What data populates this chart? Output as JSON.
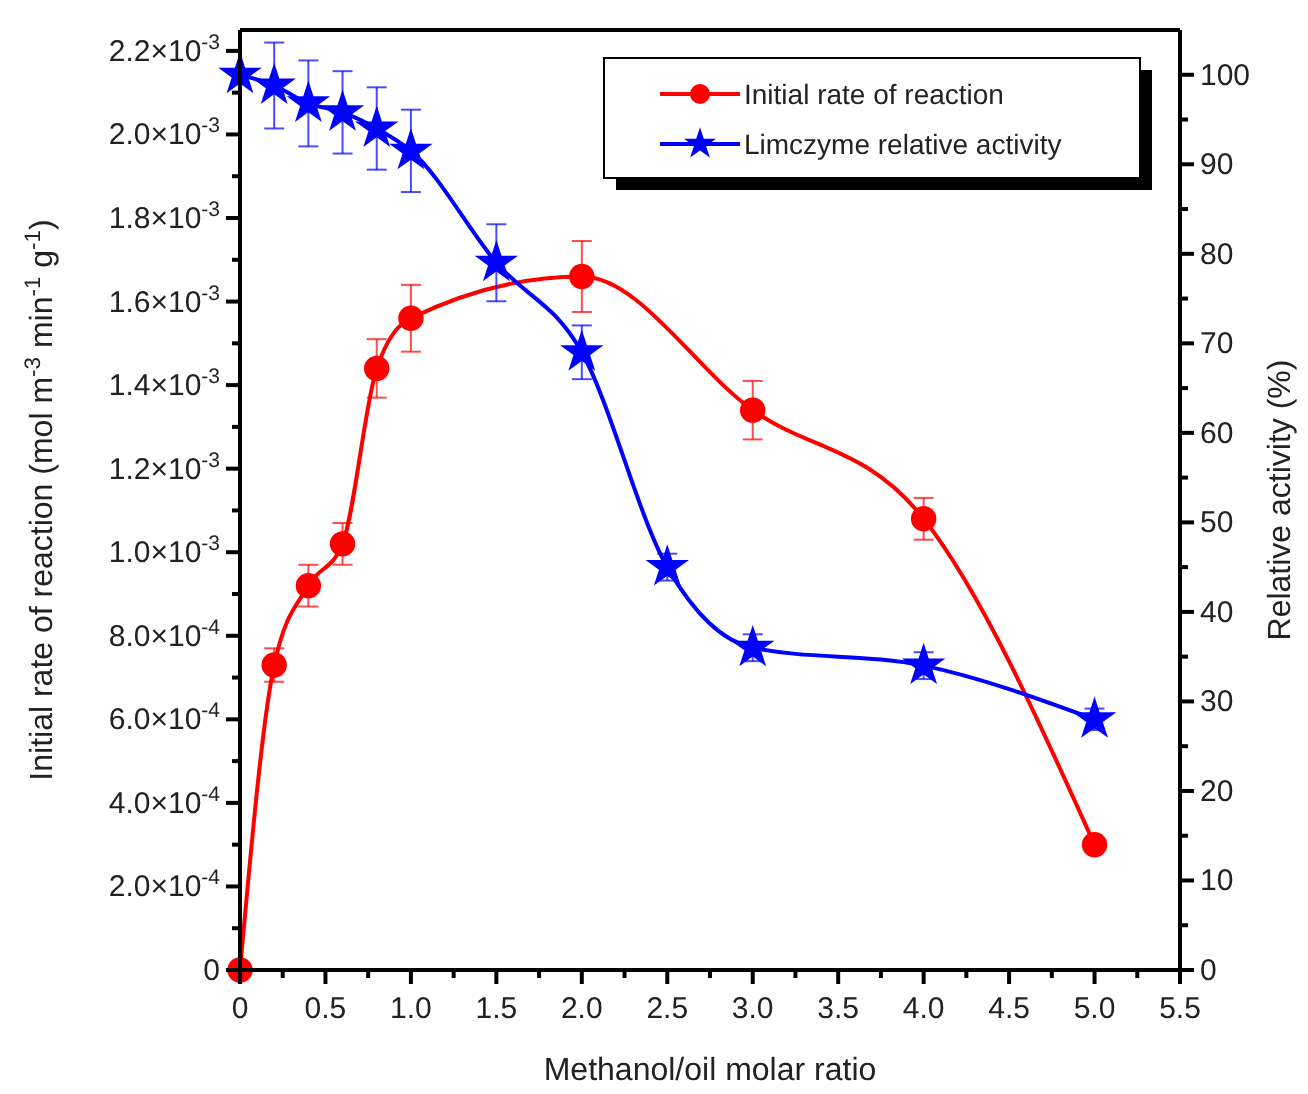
{
  "chart_data": {
    "type": "line",
    "xlabel": "Methanol/oil molar ratio",
    "ylabel": "Initial rate of reaction (mol m$^{-3}$ min$^{-1}$ g$^{-1}$)",
    "y2label": "Relative activity (%)",
    "xlim": [
      0,
      5.5
    ],
    "xticks": [
      {
        "value": 0,
        "label": "0"
      },
      {
        "value": 0.25,
        "label": null
      },
      {
        "value": 0.5,
        "label": "0.5"
      },
      {
        "value": 0.75,
        "label": null
      },
      {
        "value": 1,
        "label": "1.0"
      },
      {
        "value": 1.25,
        "label": null
      },
      {
        "value": 1.5,
        "label": "1.5"
      },
      {
        "value": 1.75,
        "label": null
      },
      {
        "value": 2,
        "label": "2.0"
      },
      {
        "value": 2.25,
        "label": null
      },
      {
        "value": 2.5,
        "label": "2.5"
      },
      {
        "value": 2.75,
        "label": null
      },
      {
        "value": 3,
        "label": "3.0"
      },
      {
        "value": 3.25,
        "label": null
      },
      {
        "value": 3.5,
        "label": "3.5"
      },
      {
        "value": 3.75,
        "label": null
      },
      {
        "value": 4,
        "label": "4.0"
      },
      {
        "value": 4.25,
        "label": null
      },
      {
        "value": 4.5,
        "label": "4.5"
      },
      {
        "value": 4.75,
        "label": null
      },
      {
        "value": 5,
        "label": "5.0"
      },
      {
        "value": 5.25,
        "label": null
      },
      {
        "value": 5.5,
        "label": "5.5"
      }
    ],
    "ylim": [
      0,
      0.00225
    ],
    "yticks": [
      {
        "value": 0,
        "label": "0"
      },
      {
        "value": 0.0001,
        "label": null
      },
      {
        "value": 0.0002,
        "label": "2.0×10$^{-4}$"
      },
      {
        "value": 0.0003,
        "label": null
      },
      {
        "value": 0.0004,
        "label": "4.0×10$^{-4}$"
      },
      {
        "value": 0.0005,
        "label": null
      },
      {
        "value": 0.0006,
        "label": "6.0×10$^{-4}$"
      },
      {
        "value": 0.0007,
        "label": null
      },
      {
        "value": 0.0008,
        "label": "8.0×10$^{-4}$"
      },
      {
        "value": 0.0009,
        "label": null
      },
      {
        "value": 0.001,
        "label": "1.0×10$^{-3}$"
      },
      {
        "value": 0.0011,
        "label": null
      },
      {
        "value": 0.0012,
        "label": "1.2×10$^{-3}$"
      },
      {
        "value": 0.0013,
        "label": null
      },
      {
        "value": 0.0014,
        "label": "1.4×10$^{-3}$"
      },
      {
        "value": 0.0015,
        "label": null
      },
      {
        "value": 0.0016,
        "label": "1.6×10$^{-3}$"
      },
      {
        "value": 0.0017,
        "label": null
      },
      {
        "value": 0.0018,
        "label": "1.8×10$^{-3}$"
      },
      {
        "value": 0.0019,
        "label": null
      },
      {
        "value": 0.002,
        "label": "2.0×10$^{-3}$"
      },
      {
        "value": 0.0021,
        "label": null
      },
      {
        "value": 0.0022,
        "label": "2.2×10$^{-3}$"
      }
    ],
    "y2lim": [
      0,
      105
    ],
    "y2ticks": [
      0,
      {
        "value": 5,
        "label": null
      },
      10,
      {
        "value": 15,
        "label": null
      },
      20,
      {
        "value": 25,
        "label": null
      },
      30,
      {
        "value": 35,
        "label": null
      },
      40,
      {
        "value": 45,
        "label": null
      },
      50,
      {
        "value": 55,
        "label": null
      },
      60,
      {
        "value": 65,
        "label": null
      },
      70,
      {
        "value": 75,
        "label": null
      },
      80,
      {
        "value": 85,
        "label": null
      },
      90,
      {
        "value": 95,
        "label": null
      },
      100
    ],
    "legend": "top right",
    "grid": false,
    "line_style": "solid",
    "series": [
      {
        "name": "Initial rate of reaction",
        "color": "#ff0000",
        "marker": "circle",
        "x": [
          0,
          0.2,
          0.4,
          0.6,
          0.8,
          1.0,
          2.0,
          3.0,
          4.0,
          5.0
        ],
        "values": [
          0,
          0.00073,
          0.00092,
          0.00102,
          0.00144,
          0.00156,
          0.00166,
          0.00134,
          0.00108,
          0.0003
        ],
        "errors": [
          null,
          4e-05,
          5e-05,
          5e-05,
          7e-05,
          8e-05,
          8.5e-05,
          7e-05,
          5e-05,
          1e-05
        ]
      },
      {
        "name": "Limczyme relative activity",
        "color": "#0000ff",
        "marker": "star",
        "axis": "y2",
        "x": [
          0,
          0.2,
          0.4,
          0.6,
          0.8,
          1.0,
          1.5,
          2.0,
          2.5,
          3.0,
          4.0,
          5.0
        ],
        "values": [
          100,
          98.8,
          96.8,
          95.8,
          94,
          91.5,
          79,
          69,
          45,
          36,
          34,
          28
        ],
        "errors": [
          null,
          4.8,
          4.8,
          4.6,
          4.6,
          4.6,
          4.3,
          3,
          1.5,
          1.5,
          1.5,
          1.2
        ]
      }
    ]
  }
}
